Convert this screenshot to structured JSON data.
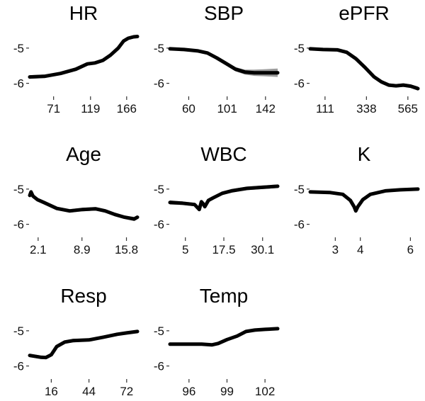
{
  "chart_data": [
    {
      "type": "line",
      "title": "HR",
      "ylim": [
        -6.25,
        -4.6
      ],
      "yticks": [
        -5,
        -6
      ],
      "xlim": [
        40,
        180
      ],
      "xticks": [
        71,
        119,
        166
      ],
      "x": [
        40,
        60,
        80,
        100,
        115,
        125,
        135,
        145,
        155,
        162,
        168,
        175,
        180
      ],
      "series": [
        {
          "values": [
            -5.82,
            -5.8,
            -5.72,
            -5.6,
            -5.45,
            -5.42,
            -5.35,
            -5.2,
            -5.0,
            -4.8,
            -4.72,
            -4.68,
            -4.67
          ]
        }
      ],
      "band": [
        0.05,
        0.05,
        0.04,
        0.04,
        0.04,
        0.04,
        0.04,
        0.04,
        0.04,
        0.04,
        0.04,
        0.04,
        0.04
      ]
    },
    {
      "type": "line",
      "title": "SBP",
      "ylim": [
        -6.25,
        -4.6
      ],
      "yticks": [
        -5,
        -6
      ],
      "xlim": [
        40,
        155
      ],
      "xticks": [
        60,
        101,
        142
      ],
      "x": [
        40,
        55,
        70,
        80,
        90,
        100,
        110,
        120,
        130,
        140,
        155
      ],
      "series": [
        {
          "values": [
            -5.02,
            -5.04,
            -5.08,
            -5.14,
            -5.28,
            -5.44,
            -5.6,
            -5.68,
            -5.7,
            -5.7,
            -5.7
          ]
        }
      ],
      "band": [
        0.04,
        0.04,
        0.04,
        0.04,
        0.04,
        0.05,
        0.06,
        0.07,
        0.09,
        0.1,
        0.12
      ]
    },
    {
      "type": "line",
      "title": "ePFR",
      "ylim": [
        -6.25,
        -4.6
      ],
      "yticks": [
        -5,
        -6
      ],
      "xlim": [
        30,
        620
      ],
      "xticks": [
        111,
        338,
        565
      ],
      "x": [
        30,
        100,
        180,
        230,
        280,
        330,
        380,
        420,
        460,
        500,
        540,
        580,
        620
      ],
      "series": [
        {
          "values": [
            -5.02,
            -5.04,
            -5.05,
            -5.12,
            -5.3,
            -5.55,
            -5.82,
            -5.96,
            -6.05,
            -6.07,
            -6.05,
            -6.08,
            -6.15
          ]
        }
      ],
      "band": [
        0.04,
        0.04,
        0.04,
        0.04,
        0.04,
        0.04,
        0.04,
        0.04,
        0.05,
        0.05,
        0.05,
        0.05,
        0.06
      ]
    },
    {
      "type": "line",
      "title": "Age",
      "ylim": [
        -6.25,
        -4.6
      ],
      "yticks": [
        -5,
        -6
      ],
      "xlim": [
        0.8,
        17.5
      ],
      "xticks": [
        2.1,
        8.9,
        15.8
      ],
      "x": [
        0.8,
        1.0,
        1.3,
        2.0,
        3.0,
        5.0,
        7.0,
        9.0,
        11.0,
        12.5,
        14.0,
        15.5,
        17.0,
        17.5
      ],
      "series": [
        {
          "values": [
            -5.18,
            -5.08,
            -5.2,
            -5.3,
            -5.38,
            -5.55,
            -5.62,
            -5.58,
            -5.56,
            -5.62,
            -5.72,
            -5.8,
            -5.85,
            -5.8
          ]
        }
      ],
      "band": [
        0.08,
        0.06,
        0.05,
        0.05,
        0.05,
        0.05,
        0.05,
        0.05,
        0.05,
        0.05,
        0.05,
        0.05,
        0.06,
        0.06
      ]
    },
    {
      "type": "line",
      "title": "WBC",
      "ylim": [
        -6.25,
        -4.6
      ],
      "yticks": [
        -5,
        -6
      ],
      "xlim": [
        0,
        35
      ],
      "xticks": [
        5.0,
        17.5,
        30.1
      ],
      "x": [
        0,
        4,
        8,
        9.5,
        10.2,
        10.8,
        11.3,
        12.5,
        14,
        17,
        20,
        25,
        30,
        35
      ],
      "series": [
        {
          "values": [
            -5.38,
            -5.4,
            -5.44,
            -5.58,
            -5.36,
            -5.42,
            -5.5,
            -5.32,
            -5.25,
            -5.12,
            -5.05,
            -4.98,
            -4.95,
            -4.92
          ]
        }
      ],
      "band": [
        0.06,
        0.05,
        0.05,
        0.05,
        0.05,
        0.05,
        0.05,
        0.05,
        0.05,
        0.05,
        0.05,
        0.05,
        0.05,
        0.05
      ]
    },
    {
      "type": "line",
      "title": "K",
      "ylim": [
        -6.25,
        -4.6
      ],
      "yticks": [
        -5,
        -6
      ],
      "xlim": [
        2.0,
        6.3
      ],
      "xticks": [
        3,
        4,
        6
      ],
      "x": [
        2.0,
        2.8,
        3.3,
        3.6,
        3.75,
        3.82,
        3.9,
        4.1,
        4.4,
        5.0,
        5.6,
        6.3
      ],
      "series": [
        {
          "values": [
            -5.08,
            -5.1,
            -5.15,
            -5.32,
            -5.5,
            -5.62,
            -5.5,
            -5.3,
            -5.15,
            -5.05,
            -5.02,
            -5.0
          ]
        }
      ],
      "band": [
        0.04,
        0.04,
        0.04,
        0.04,
        0.04,
        0.04,
        0.04,
        0.04,
        0.04,
        0.04,
        0.04,
        0.04
      ]
    },
    {
      "type": "line",
      "title": "Resp",
      "ylim": [
        -6.25,
        -4.6
      ],
      "yticks": [
        -5,
        -6
      ],
      "xlim": [
        0,
        80
      ],
      "xticks": [
        16,
        44,
        72
      ],
      "x": [
        0,
        8,
        12,
        16,
        20,
        26,
        32,
        44,
        55,
        65,
        72,
        80
      ],
      "series": [
        {
          "values": [
            -5.7,
            -5.75,
            -5.76,
            -5.68,
            -5.45,
            -5.32,
            -5.28,
            -5.26,
            -5.18,
            -5.1,
            -5.06,
            -5.02
          ]
        }
      ],
      "band": [
        0.05,
        0.05,
        0.05,
        0.05,
        0.05,
        0.05,
        0.05,
        0.04,
        0.04,
        0.04,
        0.04,
        0.04
      ]
    },
    {
      "type": "line",
      "title": "Temp",
      "ylim": [
        -6.25,
        -4.6
      ],
      "yticks": [
        -5,
        -6
      ],
      "xlim": [
        94.5,
        103
      ],
      "xticks": [
        96,
        99,
        102
      ],
      "x": [
        94.5,
        96,
        97,
        97.8,
        98.3,
        99,
        99.8,
        100.5,
        101.2,
        102,
        103
      ],
      "series": [
        {
          "values": [
            -5.38,
            -5.38,
            -5.38,
            -5.4,
            -5.36,
            -5.25,
            -5.15,
            -5.02,
            -4.98,
            -4.96,
            -4.94
          ]
        }
      ],
      "band": [
        0.04,
        0.04,
        0.04,
        0.04,
        0.04,
        0.04,
        0.04,
        0.04,
        0.04,
        0.04,
        0.04
      ]
    }
  ]
}
